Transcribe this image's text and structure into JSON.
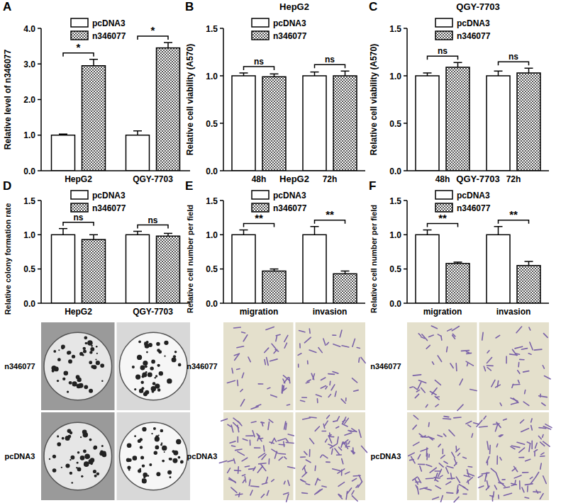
{
  "chart_data": [
    {
      "type": "bar",
      "panel_label": "A",
      "y_label": "Relative level of n346077",
      "categories": [
        "HepG2",
        "QGY-7703"
      ],
      "series": [
        {
          "name": "pcDNA3",
          "color": "#ffffff",
          "values": [
            1.0,
            1.0
          ],
          "errors": [
            0.03,
            0.12
          ]
        },
        {
          "name": "n346077",
          "color": "#555555",
          "marker": "checker",
          "values": [
            2.95,
            3.45
          ],
          "errors": [
            0.18,
            0.15
          ]
        }
      ],
      "ylim": [
        0,
        4
      ],
      "yticks": [
        {
          "value": 0,
          "label": "0.0"
        },
        {
          "value": 1,
          "label": "1.0"
        },
        {
          "value": 2,
          "label": "2.0"
        },
        {
          "value": 3,
          "label": "3.0"
        },
        {
          "value": 4,
          "label": "4.0"
        }
      ],
      "legend": "top",
      "significance": [
        "*",
        "*"
      ]
    },
    {
      "type": "bar",
      "panel_label": "B",
      "title": "HepG2",
      "y_label": "Relative cell viability (A570)",
      "categories": [
        "48h",
        "72h"
      ],
      "series": [
        {
          "name": "pcDNA3",
          "color": "#ffffff",
          "values": [
            1.0,
            1.0
          ],
          "errors": [
            0.03,
            0.04
          ]
        },
        {
          "name": "n346077",
          "color": "#555555",
          "marker": "checker",
          "values": [
            0.99,
            1.0
          ],
          "errors": [
            0.03,
            0.05
          ]
        }
      ],
      "ylim": [
        0,
        1.5
      ],
      "yticks": [
        {
          "value": 0,
          "label": "0.0"
        },
        {
          "value": 0.5,
          "label": "0.5"
        },
        {
          "value": 1,
          "label": "1.0"
        },
        {
          "value": 1.5,
          "label": "1.5"
        }
      ],
      "legend": "top",
      "significance": [
        "ns",
        "ns"
      ]
    },
    {
      "type": "bar",
      "panel_label": "C",
      "title": "QGY-7703",
      "y_label": "Relative cell viability (A570)",
      "categories": [
        "48h",
        "72h"
      ],
      "series": [
        {
          "name": "pcDNA3",
          "color": "#ffffff",
          "values": [
            1.0,
            1.0
          ],
          "errors": [
            0.03,
            0.05
          ]
        },
        {
          "name": "n346077",
          "color": "#555555",
          "marker": "checker",
          "values": [
            1.09,
            1.03
          ],
          "errors": [
            0.05,
            0.05
          ]
        }
      ],
      "ylim": [
        0,
        1.5
      ],
      "yticks": [
        {
          "value": 0,
          "label": "0.0"
        },
        {
          "value": 0.5,
          "label": "0.5"
        },
        {
          "value": 1,
          "label": "1.0"
        },
        {
          "value": 1.5,
          "label": "1.5"
        }
      ],
      "legend": "top",
      "significance": [
        "ns",
        "ns"
      ]
    },
    {
      "type": "bar",
      "panel_label": "D",
      "y_label": "Relative colony formation rate",
      "categories": [
        "HepG2",
        "QGY-7703"
      ],
      "series": [
        {
          "name": "pcDNA3",
          "color": "#ffffff",
          "values": [
            1.0,
            1.0
          ],
          "errors": [
            0.09,
            0.05
          ]
        },
        {
          "name": "n346077",
          "color": "#555555",
          "marker": "checker",
          "values": [
            0.93,
            0.98
          ],
          "errors": [
            0.07,
            0.04
          ]
        }
      ],
      "ylim": [
        0,
        1.5
      ],
      "yticks": [
        {
          "value": 0,
          "label": "0.0"
        },
        {
          "value": 0.5,
          "label": "0.5"
        },
        {
          "value": 1,
          "label": "1.0"
        },
        {
          "value": 1.5,
          "label": "1.5"
        }
      ],
      "legend": "top",
      "significance": [
        "ns",
        "ns"
      ],
      "image_rows": [
        "n346077",
        "pcDNA3"
      ]
    },
    {
      "type": "bar",
      "panel_label": "E",
      "title": "HepG2",
      "y_label": "Relative cell number per field",
      "categories": [
        "migration",
        "invasion"
      ],
      "series": [
        {
          "name": "pcDNA3",
          "color": "#ffffff",
          "values": [
            1.0,
            1.0
          ],
          "errors": [
            0.07,
            0.12
          ]
        },
        {
          "name": "n346077",
          "color": "#555555",
          "marker": "checker",
          "values": [
            0.47,
            0.43
          ],
          "errors": [
            0.03,
            0.04
          ]
        }
      ],
      "ylim": [
        0,
        1.5
      ],
      "yticks": [
        {
          "value": 0,
          "label": "0.0"
        },
        {
          "value": 0.5,
          "label": "0.5"
        },
        {
          "value": 1,
          "label": "1.0"
        },
        {
          "value": 1.5,
          "label": "1.5"
        }
      ],
      "legend": "top",
      "significance": [
        "**",
        "**"
      ],
      "image_rows": [
        "n346077",
        "pcDNA3"
      ]
    },
    {
      "type": "bar",
      "panel_label": "F",
      "title": "QGY-7703",
      "y_label": "Relative cell number per field",
      "categories": [
        "migration",
        "invasion"
      ],
      "series": [
        {
          "name": "pcDNA3",
          "color": "#ffffff",
          "values": [
            1.0,
            1.0
          ],
          "errors": [
            0.07,
            0.12
          ]
        },
        {
          "name": "n346077",
          "color": "#555555",
          "marker": "checker",
          "values": [
            0.58,
            0.55
          ],
          "errors": [
            0.02,
            0.06
          ]
        }
      ],
      "ylim": [
        0,
        1.5
      ],
      "yticks": [
        {
          "value": 0,
          "label": "0.0"
        },
        {
          "value": 0.5,
          "label": "0.5"
        },
        {
          "value": 1,
          "label": "1.0"
        },
        {
          "value": 1.5,
          "label": "1.5"
        }
      ],
      "legend": "top",
      "significance": [
        "**",
        "**"
      ],
      "image_rows": [
        "n346077",
        "pcDNA3"
      ]
    }
  ]
}
